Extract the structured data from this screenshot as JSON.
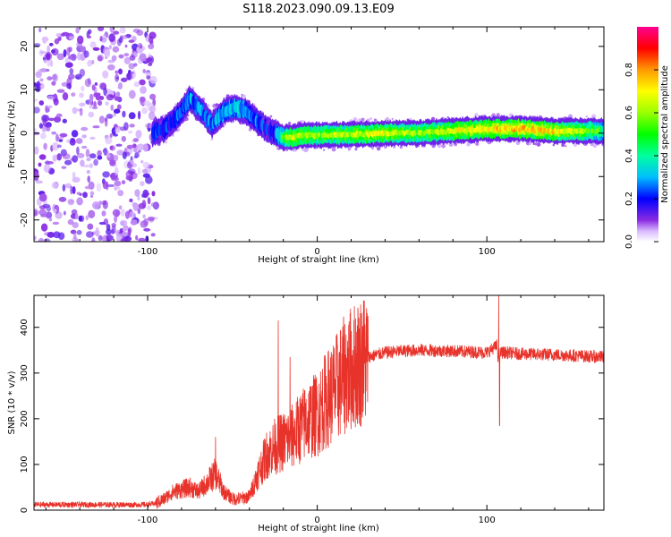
{
  "figure_title": "S118.2023.090.09.13.E09",
  "chart_data": [
    {
      "type": "heatmap",
      "panel": "spectrogram",
      "xlabel": "Height of straight line (km)",
      "ylabel": "Frequency (Hz)",
      "xlim": [
        -167,
        169
      ],
      "ylim": [
        -25,
        24.5
      ],
      "xticks": [
        -100,
        0,
        100
      ],
      "xtick_labels": [
        "-100",
        "0",
        "100"
      ],
      "yticks": [
        -20,
        -10,
        0,
        10,
        20
      ],
      "ytick_labels": [
        "-20",
        "-10",
        "0",
        "10",
        "20"
      ],
      "noise_region_x": [
        -167,
        -95
      ],
      "ridge": {
        "x": [
          -97,
          -90,
          -82,
          -75,
          -68,
          -62,
          -55,
          -48,
          -42,
          -36,
          -30,
          -25,
          -20,
          -15,
          -10,
          0,
          20,
          40,
          60,
          80,
          100,
          120,
          140,
          169
        ],
        "freq": [
          0,
          1,
          4,
          8,
          5,
          2,
          5,
          6,
          5,
          3,
          1,
          0,
          -1,
          -1,
          -0.5,
          -0.5,
          -0.3,
          0,
          0,
          0.5,
          1,
          1,
          0.5,
          0.5
        ],
        "amplitude": [
          0.25,
          0.28,
          0.3,
          0.35,
          0.32,
          0.3,
          0.4,
          0.42,
          0.38,
          0.3,
          0.25,
          0.3,
          0.55,
          0.7,
          0.65,
          0.6,
          0.65,
          0.7,
          0.6,
          0.7,
          0.75,
          0.8,
          0.75,
          0.5
        ]
      },
      "colorbar": {
        "label": "Normalized spectral amplitude",
        "range": [
          0,
          1
        ],
        "ticks": [
          0.0,
          0.2,
          0.4,
          0.6,
          0.8
        ],
        "tick_labels": [
          "0.0",
          "0.2",
          "0.4",
          "0.6",
          "0.8"
        ]
      }
    },
    {
      "type": "line",
      "panel": "snr",
      "xlabel": "Height of straight line (km)",
      "ylabel": "SNR (10 * v/v)",
      "xlim": [
        -167,
        169
      ],
      "ylim": [
        0,
        470
      ],
      "xticks": [
        -100,
        0,
        100
      ],
      "xtick_labels": [
        "-100",
        "0",
        "100"
      ],
      "yticks": [
        0,
        100,
        200,
        300,
        400
      ],
      "ytick_labels": [
        "0",
        "100",
        "200",
        "300",
        "400"
      ],
      "series": [
        {
          "name": "SNR",
          "color": "#e8332b",
          "x": [
            -167,
            -130,
            -100,
            -95,
            -90,
            -85,
            -80,
            -75,
            -70,
            -65,
            -60,
            -55,
            -50,
            -45,
            -40,
            -35,
            -30,
            -25,
            -20,
            -15,
            -10,
            -5,
            0,
            5,
            10,
            15,
            20,
            25,
            30,
            40,
            50,
            60,
            80,
            100,
            106,
            107,
            108,
            110,
            120,
            140,
            169
          ],
          "values": [
            12,
            12,
            12,
            15,
            25,
            40,
            45,
            50,
            40,
            60,
            80,
            40,
            25,
            25,
            30,
            80,
            120,
            140,
            150,
            160,
            180,
            200,
            210,
            240,
            260,
            290,
            310,
            325,
            335,
            345,
            348,
            350,
            348,
            345,
            360,
            320,
            345,
            345,
            342,
            340,
            335
          ],
          "spikes": [
            {
              "x": -60,
              "value": 160
            },
            {
              "x": -23,
              "value": 415
            },
            {
              "x": -16,
              "value": 335
            },
            {
              "x": 107,
              "value": 470
            },
            {
              "x": 107.5,
              "value": 185
            }
          ]
        }
      ]
    }
  ]
}
